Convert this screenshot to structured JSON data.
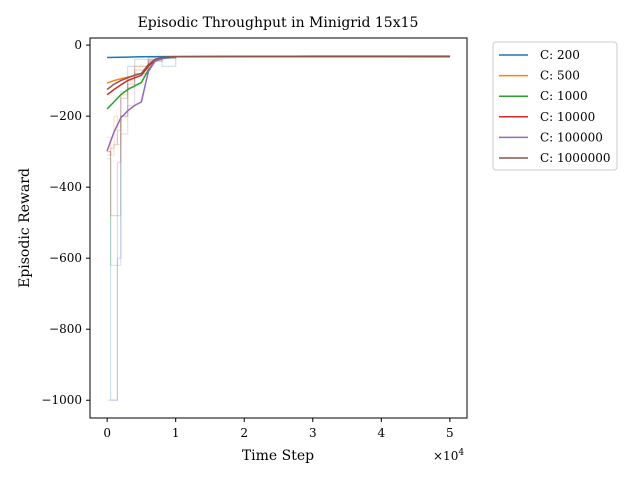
{
  "chart_data": {
    "type": "line",
    "title": "Episodic Throughput in Minigrid 15x15",
    "xlabel": "Time Step",
    "ylabel": "Episodic Reward",
    "x_scale_note": "×10",
    "x_scale_exponent": "4",
    "xlim": [
      -0.25,
      5.25
    ],
    "ylim": [
      -1050,
      20
    ],
    "xticks": [
      0,
      1,
      2,
      3,
      4,
      5
    ],
    "yticks": [
      0,
      -200,
      -400,
      -600,
      -800,
      -1000
    ],
    "ytick_labels": [
      "0",
      "−200",
      "−400",
      "−600",
      "−800",
      "−1000"
    ],
    "grid": false,
    "legend_position": "outside-top-right",
    "series": [
      {
        "name": "C: 200",
        "color": "#1f77b4",
        "x": [
          0,
          0.5,
          1,
          2,
          3,
          4,
          5
        ],
        "y": [
          -35,
          -33,
          -32,
          -32,
          -31,
          -31,
          -31
        ],
        "raw_x": [
          0,
          0.05,
          0.1,
          0.15,
          0.2,
          0.3,
          0.4,
          0.6,
          0.8,
          1.0,
          1.5,
          2.0,
          3.0,
          4.0,
          5.0
        ],
        "raw_y": [
          -300,
          -1000,
          -1000,
          -600,
          -130,
          -60,
          -40,
          -35,
          -60,
          -33,
          -32,
          -32,
          -31,
          -31,
          -31
        ]
      },
      {
        "name": "C: 500",
        "color": "#ff7f0e",
        "x": [
          0,
          0.1,
          0.2,
          0.3,
          0.4,
          0.5,
          0.6,
          0.7,
          0.8,
          1.0,
          2.0,
          3.0,
          4.0,
          5.0
        ],
        "y": [
          -107,
          -100,
          -95,
          -90,
          -85,
          -80,
          -60,
          -40,
          -36,
          -33,
          -32,
          -32,
          -32,
          -33
        ],
        "raw_x": [
          0,
          0.05,
          0.1,
          0.15,
          0.2,
          0.3,
          0.4,
          0.6,
          0.8,
          1.0,
          2.0,
          3.0,
          4.0,
          5.0
        ],
        "raw_y": [
          -260,
          -310,
          -200,
          -280,
          -140,
          -100,
          -60,
          -40,
          -35,
          -33,
          -32,
          -32,
          -32,
          -33
        ]
      },
      {
        "name": "C: 1000",
        "color": "#2ca02c",
        "x": [
          0,
          0.1,
          0.2,
          0.3,
          0.4,
          0.5,
          0.6,
          0.7,
          0.8,
          1.0,
          2.0,
          3.0,
          4.0,
          5.0
        ],
        "y": [
          -180,
          -160,
          -140,
          -125,
          -115,
          -105,
          -70,
          -45,
          -38,
          -33,
          -32,
          -32,
          -32,
          -32
        ],
        "raw_x": [
          0,
          0.05,
          0.1,
          0.15,
          0.2,
          0.3,
          0.4,
          0.6,
          0.8,
          1.0,
          2.0,
          3.0,
          4.0,
          5.0
        ],
        "raw_y": [
          -320,
          -620,
          -620,
          -480,
          -200,
          -120,
          -80,
          -45,
          -38,
          -33,
          -32,
          -32,
          -32,
          -32
        ]
      },
      {
        "name": "C: 10000",
        "color": "#d62728",
        "x": [
          0,
          0.1,
          0.2,
          0.3,
          0.4,
          0.5,
          0.6,
          0.7,
          0.8,
          1.0,
          2.0,
          3.0,
          4.0,
          5.0
        ],
        "y": [
          -140,
          -125,
          -112,
          -100,
          -92,
          -85,
          -60,
          -42,
          -36,
          -33,
          -32,
          -32,
          -32,
          -32
        ],
        "raw_x": [
          0,
          0.05,
          0.1,
          0.15,
          0.2,
          0.3,
          0.4,
          0.6,
          0.8,
          1.0,
          2.0,
          3.0,
          4.0,
          5.0
        ],
        "raw_y": [
          -300,
          -480,
          -480,
          -330,
          -200,
          -110,
          -70,
          -42,
          -36,
          -33,
          -32,
          -32,
          -32,
          -32
        ]
      },
      {
        "name": "C: 100000",
        "color": "#9467bd",
        "x": [
          0,
          0.1,
          0.2,
          0.3,
          0.4,
          0.5,
          0.6,
          0.7,
          0.8,
          1.0,
          2.0,
          3.0,
          4.0,
          5.0
        ],
        "y": [
          -298,
          -245,
          -205,
          -185,
          -170,
          -160,
          -75,
          -45,
          -37,
          -33,
          -32,
          -32,
          -32,
          -32
        ],
        "raw_x": [
          0,
          0.05,
          0.1,
          0.15,
          0.2,
          0.3,
          0.4,
          0.6,
          0.8,
          1.0,
          2.0,
          3.0,
          4.0,
          5.0
        ],
        "raw_y": [
          -1000,
          -1000,
          -1000,
          -620,
          -250,
          -170,
          -80,
          -45,
          -37,
          -33,
          -32,
          -32,
          -32,
          -32
        ]
      },
      {
        "name": "C: 1000000",
        "color": "#8c564b",
        "x": [
          0,
          0.1,
          0.2,
          0.3,
          0.4,
          0.5,
          0.6,
          0.7,
          0.8,
          1.0,
          2.0,
          3.0,
          4.0,
          5.0
        ],
        "y": [
          -125,
          -110,
          -100,
          -92,
          -85,
          -80,
          -55,
          -40,
          -35,
          -33,
          -32,
          -32,
          -32,
          -33
        ],
        "raw_x": [
          0,
          0.05,
          0.1,
          0.15,
          0.2,
          0.3,
          0.4,
          0.6,
          0.8,
          1.0,
          2.0,
          3.0,
          4.0,
          5.0
        ],
        "raw_y": [
          -310,
          -290,
          -280,
          -240,
          -150,
          -95,
          -60,
          -40,
          -35,
          -33,
          -32,
          -32,
          -32,
          -33
        ]
      }
    ]
  }
}
